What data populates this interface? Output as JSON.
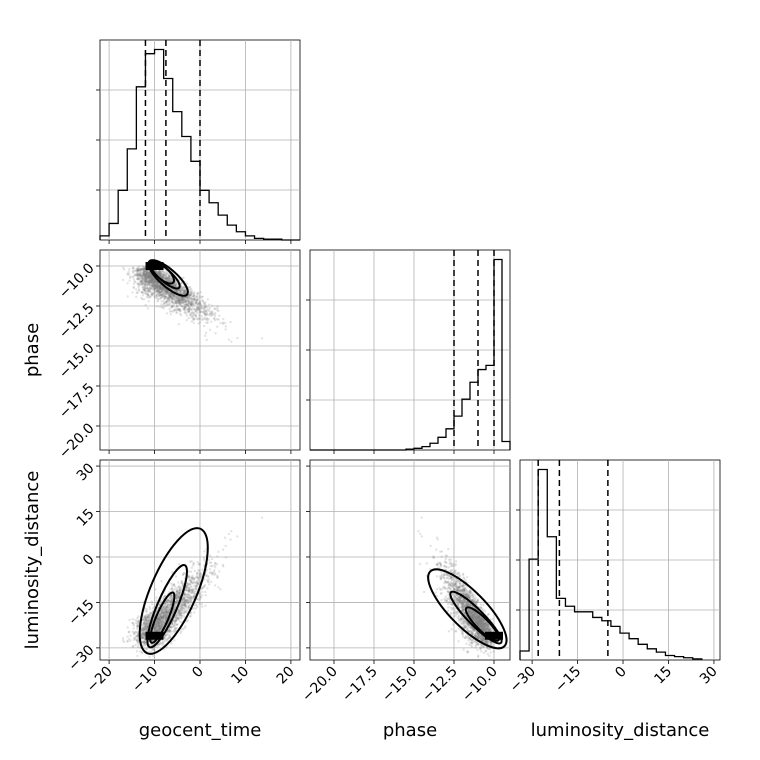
{
  "chart_data": {
    "type": "corner",
    "parameters": [
      "geocent_time",
      "phase",
      "luminosity_distance"
    ],
    "axes": {
      "geocent_time": {
        "range": [
          -22,
          22
        ],
        "ticks": [
          -20,
          -10,
          0,
          10,
          20
        ],
        "tick_labels": [
          "−20",
          "−10",
          "0",
          "10",
          "20"
        ]
      },
      "phase": {
        "range": [
          -21.5,
          -9.0
        ],
        "ticks": [
          -20.0,
          -17.5,
          -15.0,
          -12.5,
          -10.0
        ],
        "tick_labels": [
          "−20.0",
          "−17.5",
          "−15.0",
          "−12.5",
          "−10.0"
        ]
      },
      "luminosity_distance": {
        "range": [
          -34,
          32
        ],
        "ticks": [
          -30,
          -15,
          0,
          15,
          30
        ],
        "tick_labels": [
          "−30",
          "−15",
          "0",
          "15",
          "30"
        ]
      }
    },
    "histograms": [
      {
        "parameter": "geocent_time",
        "bin_edges": [
          -22,
          -20,
          -18,
          -16,
          -14,
          -12,
          -10,
          -8,
          -6,
          -4,
          -2,
          0,
          2,
          4,
          6,
          8,
          10,
          12,
          14,
          16,
          18,
          20,
          22
        ],
        "counts": [
          5,
          20,
          60,
          110,
          185,
          225,
          230,
          195,
          155,
          125,
          95,
          60,
          45,
          30,
          18,
          10,
          5,
          2,
          1,
          1,
          0,
          0
        ],
        "quantiles": [
          -12,
          -7.5,
          0
        ]
      },
      {
        "parameter": "phase",
        "bin_edges": [
          -21.5,
          -21.0,
          -20.5,
          -20.0,
          -19.5,
          -19.0,
          -18.5,
          -18.0,
          -17.5,
          -17.0,
          -16.5,
          -16.0,
          -15.5,
          -15.0,
          -14.5,
          -14.0,
          -13.5,
          -13.0,
          -12.5,
          -12.0,
          -11.5,
          -11.0,
          -10.5,
          -10.0,
          -9.5,
          -9.0
        ],
        "counts": [
          0,
          0,
          0,
          0,
          0,
          0,
          0,
          0,
          0,
          0,
          0,
          0,
          1,
          2,
          4,
          8,
          15,
          25,
          40,
          60,
          80,
          95,
          100,
          225,
          10
        ],
        "quantiles": [
          -12.5,
          -11.0,
          -10.0
        ]
      },
      {
        "parameter": "luminosity_distance",
        "bin_edges": [
          -34,
          -31,
          -28,
          -25,
          -22,
          -19,
          -16,
          -13,
          -10,
          -7,
          -4,
          -1,
          2,
          5,
          8,
          11,
          14,
          17,
          20,
          23,
          26
        ],
        "counts": [
          8,
          90,
          170,
          110,
          55,
          48,
          43,
          43,
          38,
          35,
          30,
          24,
          19,
          14,
          10,
          7,
          4,
          3,
          2,
          1
        ],
        "quantiles": [
          -28,
          -21,
          -5
        ]
      }
    ],
    "pairs": [
      {
        "x": "geocent_time",
        "y": "phase",
        "samples_center": [
          -8,
          -10.5
        ],
        "correlation": "negative",
        "density_peak": [
          -10,
          -10.0
        ]
      },
      {
        "x": "geocent_time",
        "y": "luminosity_distance",
        "samples_center": [
          -6,
          -12
        ],
        "correlation": "positive",
        "density_peak": [
          -10,
          -26
        ]
      },
      {
        "x": "phase",
        "y": "luminosity_distance",
        "samples_center": [
          -11.5,
          -18
        ],
        "correlation": "negative",
        "density_peak": [
          -10.0,
          -26
        ]
      }
    ],
    "grid": true
  }
}
